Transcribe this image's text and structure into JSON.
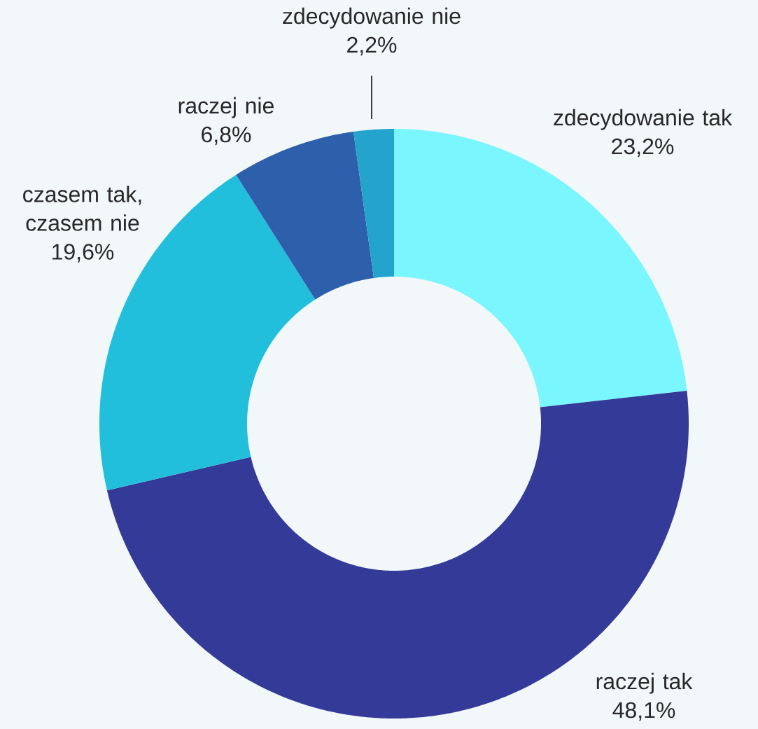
{
  "chart_data": {
    "type": "donut",
    "categories": [
      "zdecydowanie tak",
      "raczej tak",
      "czasem tak, czasem nie",
      "raczej nie",
      "zdecydowanie nie"
    ],
    "values": [
      23.2,
      48.1,
      19.6,
      6.8,
      2.2
    ],
    "value_labels": [
      "23,2%",
      "48,1%",
      "19,6%",
      "6,8%",
      "2,2%"
    ],
    "colors": [
      "#7af6fe",
      "#343a98",
      "#22bfdd",
      "#2d5faa",
      "#24a3cc"
    ]
  }
}
